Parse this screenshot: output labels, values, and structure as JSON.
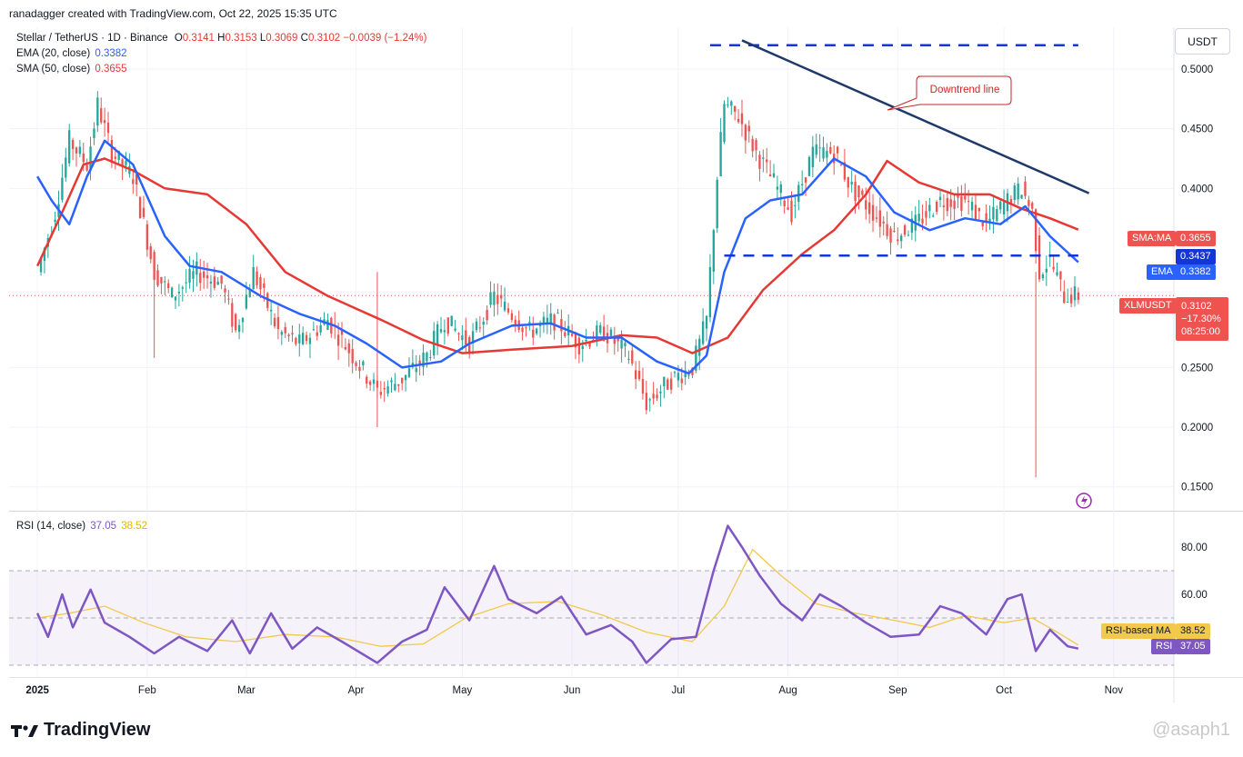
{
  "header": {
    "credit": "ranadagger created with TradingView.com, Oct 22, 2025 15:35 UTC"
  },
  "legend": {
    "symbol": "Stellar / TetherUS · 1D · Binance",
    "o_label": "O",
    "o_value": "0.3141",
    "h_label": "H",
    "h_value": "0.3153",
    "l_label": "L",
    "l_value": "0.3069",
    "c_label": "C",
    "c_value": "0.3102",
    "change": "−0.0039 (−1.24%)",
    "ema_label": "EMA (20, close)",
    "ema_value": "0.3382",
    "sma_label": "SMA (50, close)",
    "sma_value": "0.3655",
    "rsi_label": "RSI (14, close)",
    "rsi_value": "37.05",
    "rsi_ma_value": "38.52"
  },
  "currency_button": "USDT",
  "annotation": {
    "downtrend_label": "Downtrend line"
  },
  "tags": {
    "sma_name": "SMA:MA",
    "sma_value": "0.3655",
    "level_value": "0.3437",
    "ema_name": "EMA",
    "ema_value": "0.3382",
    "symbol_name": "XLMUSDT",
    "price": "0.3102",
    "change_pct": "−17.30%",
    "countdown": "08:25:00",
    "rsi_ma_name": "RSI-based MA",
    "rsi_ma_value": "38.52",
    "rsi_name": "RSI",
    "rsi_value": "37.05"
  },
  "footer": {
    "logo_text": "TradingView",
    "watermark": "@asaph1"
  },
  "colors": {
    "candle_up": "#26a69a",
    "candle_down": "#ef5350",
    "ema": "#2962ff",
    "sma": "#e53935",
    "rsi": "#7e57c2",
    "rsi_ma": "#f2c94c",
    "trendline": "#1f3a68",
    "level": "#1336d6"
  },
  "chart_data": {
    "type": "line",
    "price_axis": {
      "ticks": [
        "0.5000",
        "0.4500",
        "0.4000",
        "0.2500",
        "0.2000",
        "0.1500"
      ],
      "ylim": [
        0.13,
        0.535
      ]
    },
    "rsi_axis": {
      "ticks": [
        "80.00",
        "60.00"
      ],
      "ylim": [
        25,
        95
      ],
      "band": [
        30,
        70
      ]
    },
    "x_ticks": [
      "2025",
      "Feb",
      "Mar",
      "Apr",
      "May",
      "Jun",
      "Jul",
      "Aug",
      "Sep",
      "Oct",
      "Nov"
    ],
    "levels": [
      {
        "name": "resistance",
        "y": 0.52,
        "x_from": "2025-07-10",
        "x_to": "2025-10-22"
      },
      {
        "name": "support",
        "y": 0.3437,
        "x_from": "2025-07-14",
        "x_to": "2025-10-22"
      }
    ],
    "trendline": {
      "from": [
        "2025-07-19",
        0.524
      ],
      "to": [
        "2025-10-25",
        0.396
      ]
    },
    "close_series": {
      "name": "XLMUSDT",
      "points": [
        [
          "2025-01-01",
          0.33
        ],
        [
          "2025-01-06",
          0.38
        ],
        [
          "2025-01-10",
          0.44
        ],
        [
          "2025-01-15",
          0.42
        ],
        [
          "2025-01-18",
          0.47
        ],
        [
          "2025-01-22",
          0.43
        ],
        [
          "2025-01-28",
          0.41
        ],
        [
          "2025-02-03",
          0.33
        ],
        [
          "2025-02-08",
          0.31
        ],
        [
          "2025-02-15",
          0.33
        ],
        [
          "2025-02-22",
          0.32
        ],
        [
          "2025-02-26",
          0.28
        ],
        [
          "2025-03-03",
          0.33
        ],
        [
          "2025-03-10",
          0.28
        ],
        [
          "2025-03-16",
          0.27
        ],
        [
          "2025-03-24",
          0.29
        ],
        [
          "2025-03-31",
          0.26
        ],
        [
          "2025-04-07",
          0.23
        ],
        [
          "2025-04-14",
          0.24
        ],
        [
          "2025-04-21",
          0.26
        ],
        [
          "2025-04-26",
          0.29
        ],
        [
          "2025-05-03",
          0.27
        ],
        [
          "2025-05-10",
          0.31
        ],
        [
          "2025-05-13",
          0.3
        ],
        [
          "2025-05-20",
          0.28
        ],
        [
          "2025-05-27",
          0.29
        ],
        [
          "2025-06-03",
          0.27
        ],
        [
          "2025-06-10",
          0.28
        ],
        [
          "2025-06-17",
          0.26
        ],
        [
          "2025-06-22",
          0.22
        ],
        [
          "2025-06-29",
          0.24
        ],
        [
          "2025-07-05",
          0.25
        ],
        [
          "2025-07-09",
          0.29
        ],
        [
          "2025-07-12",
          0.41
        ],
        [
          "2025-07-14",
          0.47
        ],
        [
          "2025-07-18",
          0.46
        ],
        [
          "2025-07-23",
          0.43
        ],
        [
          "2025-07-29",
          0.4
        ],
        [
          "2025-08-02",
          0.38
        ],
        [
          "2025-08-08",
          0.43
        ],
        [
          "2025-08-14",
          0.43
        ],
        [
          "2025-08-19",
          0.4
        ],
        [
          "2025-08-25",
          0.38
        ],
        [
          "2025-08-31",
          0.36
        ],
        [
          "2025-09-06",
          0.37
        ],
        [
          "2025-09-13",
          0.39
        ],
        [
          "2025-09-20",
          0.39
        ],
        [
          "2025-09-26",
          0.37
        ],
        [
          "2025-10-02",
          0.39
        ],
        [
          "2025-10-06",
          0.4
        ],
        [
          "2025-10-09",
          0.38
        ],
        [
          "2025-10-11",
          0.33
        ],
        [
          "2025-10-14",
          0.34
        ],
        [
          "2025-10-18",
          0.31
        ],
        [
          "2025-10-22",
          0.3102
        ]
      ]
    },
    "ema20": {
      "name": "EMA (20, close)",
      "points": [
        [
          "2025-01-01",
          0.41
        ],
        [
          "2025-01-05",
          0.39
        ],
        [
          "2025-01-10",
          0.37
        ],
        [
          "2025-01-15",
          0.41
        ],
        [
          "2025-01-20",
          0.44
        ],
        [
          "2025-01-28",
          0.42
        ],
        [
          "2025-02-06",
          0.36
        ],
        [
          "2025-02-13",
          0.335
        ],
        [
          "2025-02-22",
          0.33
        ],
        [
          "2025-03-05",
          0.31
        ],
        [
          "2025-03-16",
          0.295
        ],
        [
          "2025-03-26",
          0.285
        ],
        [
          "2025-04-04",
          0.27
        ],
        [
          "2025-04-14",
          0.25
        ],
        [
          "2025-04-25",
          0.255
        ],
        [
          "2025-05-03",
          0.27
        ],
        [
          "2025-05-15",
          0.285
        ],
        [
          "2025-05-26",
          0.287
        ],
        [
          "2025-06-05",
          0.275
        ],
        [
          "2025-06-15",
          0.275
        ],
        [
          "2025-06-25",
          0.255
        ],
        [
          "2025-07-04",
          0.245
        ],
        [
          "2025-07-09",
          0.26
        ],
        [
          "2025-07-14",
          0.33
        ],
        [
          "2025-07-20",
          0.375
        ],
        [
          "2025-07-27",
          0.39
        ],
        [
          "2025-08-05",
          0.395
        ],
        [
          "2025-08-14",
          0.425
        ],
        [
          "2025-08-23",
          0.41
        ],
        [
          "2025-08-31",
          0.38
        ],
        [
          "2025-09-10",
          0.365
        ],
        [
          "2025-09-20",
          0.375
        ],
        [
          "2025-09-30",
          0.37
        ],
        [
          "2025-10-07",
          0.385
        ],
        [
          "2025-10-14",
          0.36
        ],
        [
          "2025-10-22",
          0.3382
        ]
      ]
    },
    "sma50": {
      "name": "SMA (50, close)",
      "points": [
        [
          "2025-01-01",
          0.335
        ],
        [
          "2025-01-08",
          0.38
        ],
        [
          "2025-01-14",
          0.42
        ],
        [
          "2025-01-20",
          0.425
        ],
        [
          "2025-01-28",
          0.415
        ],
        [
          "2025-02-06",
          0.4
        ],
        [
          "2025-02-18",
          0.395
        ],
        [
          "2025-03-01",
          0.37
        ],
        [
          "2025-03-12",
          0.33
        ],
        [
          "2025-03-24",
          0.31
        ],
        [
          "2025-04-08",
          0.29
        ],
        [
          "2025-04-20",
          0.273
        ],
        [
          "2025-05-01",
          0.262
        ],
        [
          "2025-05-15",
          0.265
        ],
        [
          "2025-06-01",
          0.268
        ],
        [
          "2025-06-15",
          0.277
        ],
        [
          "2025-06-25",
          0.275
        ],
        [
          "2025-07-05",
          0.262
        ],
        [
          "2025-07-15",
          0.275
        ],
        [
          "2025-07-25",
          0.315
        ],
        [
          "2025-08-05",
          0.345
        ],
        [
          "2025-08-14",
          0.365
        ],
        [
          "2025-08-23",
          0.395
        ],
        [
          "2025-08-29",
          0.423
        ],
        [
          "2025-09-07",
          0.405
        ],
        [
          "2025-09-17",
          0.395
        ],
        [
          "2025-09-27",
          0.395
        ],
        [
          "2025-10-06",
          0.383
        ],
        [
          "2025-10-14",
          0.375
        ],
        [
          "2025-10-22",
          0.3655
        ]
      ]
    },
    "rsi": {
      "name": "RSI (14, close)",
      "points": [
        [
          "2025-01-01",
          52
        ],
        [
          "2025-01-04",
          42
        ],
        [
          "2025-01-08",
          60
        ],
        [
          "2025-01-11",
          46
        ],
        [
          "2025-01-16",
          62
        ],
        [
          "2025-01-20",
          48
        ],
        [
          "2025-01-27",
          42
        ],
        [
          "2025-02-03",
          35
        ],
        [
          "2025-02-10",
          42
        ],
        [
          "2025-02-18",
          36
        ],
        [
          "2025-02-25",
          49
        ],
        [
          "2025-03-02",
          35
        ],
        [
          "2025-03-08",
          52
        ],
        [
          "2025-03-14",
          37
        ],
        [
          "2025-03-21",
          46
        ],
        [
          "2025-03-28",
          40
        ],
        [
          "2025-04-07",
          31
        ],
        [
          "2025-04-14",
          40
        ],
        [
          "2025-04-21",
          45
        ],
        [
          "2025-04-26",
          63
        ],
        [
          "2025-05-03",
          49
        ],
        [
          "2025-05-10",
          72
        ],
        [
          "2025-05-14",
          58
        ],
        [
          "2025-05-22",
          52
        ],
        [
          "2025-05-29",
          59
        ],
        [
          "2025-06-05",
          43
        ],
        [
          "2025-06-12",
          47
        ],
        [
          "2025-06-18",
          40
        ],
        [
          "2025-06-22",
          31
        ],
        [
          "2025-06-29",
          41
        ],
        [
          "2025-07-06",
          42
        ],
        [
          "2025-07-11",
          70
        ],
        [
          "2025-07-15",
          89
        ],
        [
          "2025-07-19",
          80
        ],
        [
          "2025-07-24",
          68
        ],
        [
          "2025-07-30",
          56
        ],
        [
          "2025-08-05",
          49
        ],
        [
          "2025-08-10",
          60
        ],
        [
          "2025-08-16",
          55
        ],
        [
          "2025-08-23",
          48
        ],
        [
          "2025-08-30",
          42
        ],
        [
          "2025-09-07",
          43
        ],
        [
          "2025-09-13",
          55
        ],
        [
          "2025-09-19",
          52
        ],
        [
          "2025-09-26",
          43
        ],
        [
          "2025-10-02",
          58
        ],
        [
          "2025-10-06",
          60
        ],
        [
          "2025-10-10",
          36
        ],
        [
          "2025-10-14",
          45
        ],
        [
          "2025-10-19",
          38
        ],
        [
          "2025-10-22",
          37.05
        ]
      ]
    },
    "rsi_ma": {
      "name": "RSI-based MA",
      "points": [
        [
          "2025-01-01",
          50
        ],
        [
          "2025-01-10",
          52
        ],
        [
          "2025-01-20",
          55
        ],
        [
          "2025-01-31",
          48
        ],
        [
          "2025-02-12",
          42
        ],
        [
          "2025-02-26",
          40
        ],
        [
          "2025-03-12",
          43
        ],
        [
          "2025-03-26",
          42
        ],
        [
          "2025-04-08",
          38
        ],
        [
          "2025-04-20",
          39
        ],
        [
          "2025-05-02",
          50
        ],
        [
          "2025-05-14",
          56
        ],
        [
          "2025-05-28",
          57
        ],
        [
          "2025-06-10",
          51
        ],
        [
          "2025-06-22",
          44
        ],
        [
          "2025-07-05",
          40
        ],
        [
          "2025-07-14",
          55
        ],
        [
          "2025-07-22",
          79
        ],
        [
          "2025-07-30",
          68
        ],
        [
          "2025-08-09",
          56
        ],
        [
          "2025-08-20",
          52
        ],
        [
          "2025-08-31",
          49
        ],
        [
          "2025-09-10",
          46
        ],
        [
          "2025-09-20",
          51
        ],
        [
          "2025-10-01",
          48
        ],
        [
          "2025-10-09",
          50
        ],
        [
          "2025-10-16",
          44
        ],
        [
          "2025-10-22",
          38.52
        ]
      ]
    },
    "spikes": [
      {
        "date": "2025-10-10",
        "low": 0.158
      },
      {
        "date": "2025-02-03",
        "low": 0.258
      },
      {
        "date": "2025-04-07",
        "low": 0.2
      }
    ]
  }
}
